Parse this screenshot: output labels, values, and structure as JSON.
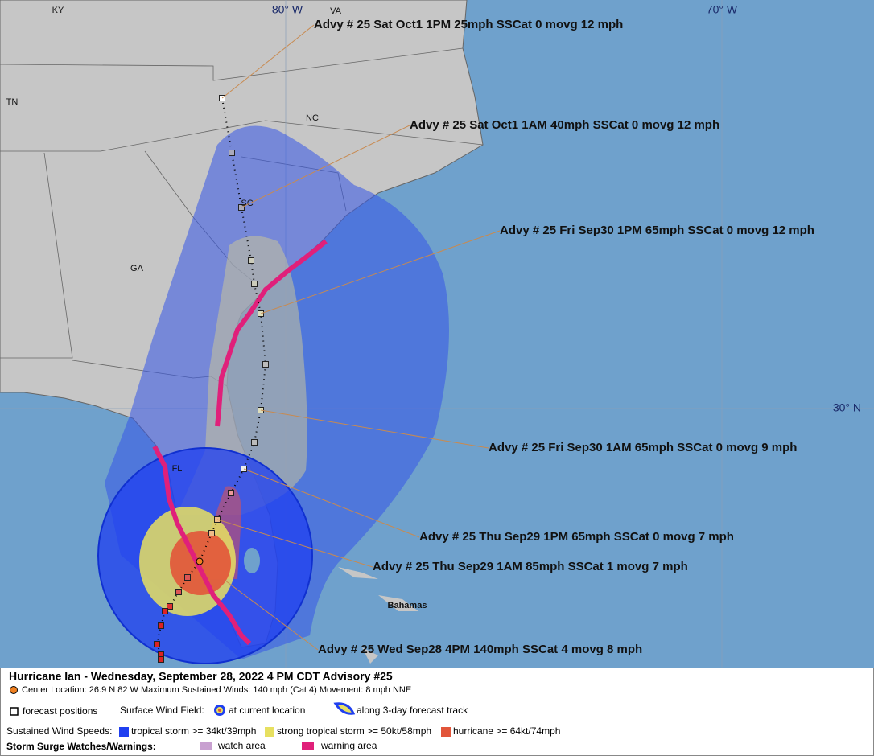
{
  "map": {
    "state_labels": [
      "KY",
      "VA",
      "TN",
      "NC",
      "SC",
      "GA",
      "FL",
      "Bahamas"
    ],
    "grid_labels": [
      "80° W",
      "70° W",
      "30° N"
    ],
    "advisories": [
      "Advy # 25 Sat Oct1 1PM  25mph SSCat 0 movg 12 mph",
      "Advy # 25 Sat Oct1 1AM  40mph SSCat 0 movg 12 mph",
      "Advy # 25 Fri Sep30 1PM  65mph SSCat 0 movg 12 mph",
      "Advy # 25 Fri Sep30 1AM  65mph SSCat 0 movg 9 mph",
      "Advy # 25 Thu Sep29 1PM  65mph SSCat 0 movg 7 mph",
      "Advy # 25 Thu Sep29 1AM  85mph SSCat 1 movg 7 mph",
      "Advy # 25 Wed Sep28 4PM  140mph SSCat 4 movg 8 mph"
    ]
  },
  "legend": {
    "title": "Hurricane Ian  -  Wednesday, September 28, 2022  4 PM CDT   Advisory #25",
    "center_info": "Center Location: 26.9 N   82 W   Maximum Sustained Winds: 140 mph (Cat 4)  Movement: 8 mph NNE",
    "forecast_positions": "forecast positions",
    "surface_wind_field": "Surface Wind Field:",
    "at_current_location": "at current location",
    "along_track": "along 3-day forecast track",
    "sustained_wind_speeds": "Sustained Wind Speeds:",
    "tropical_storm": "tropical storm >= 34kt/39mph",
    "strong_tropical_storm": "strong tropical storm >= 50kt/58mph",
    "hurricane": "hurricane >= 64kt/74mph",
    "storm_surge": "Storm Surge Watches/Warnings:",
    "watch_area": "watch area",
    "warning_area": "warning area"
  }
}
